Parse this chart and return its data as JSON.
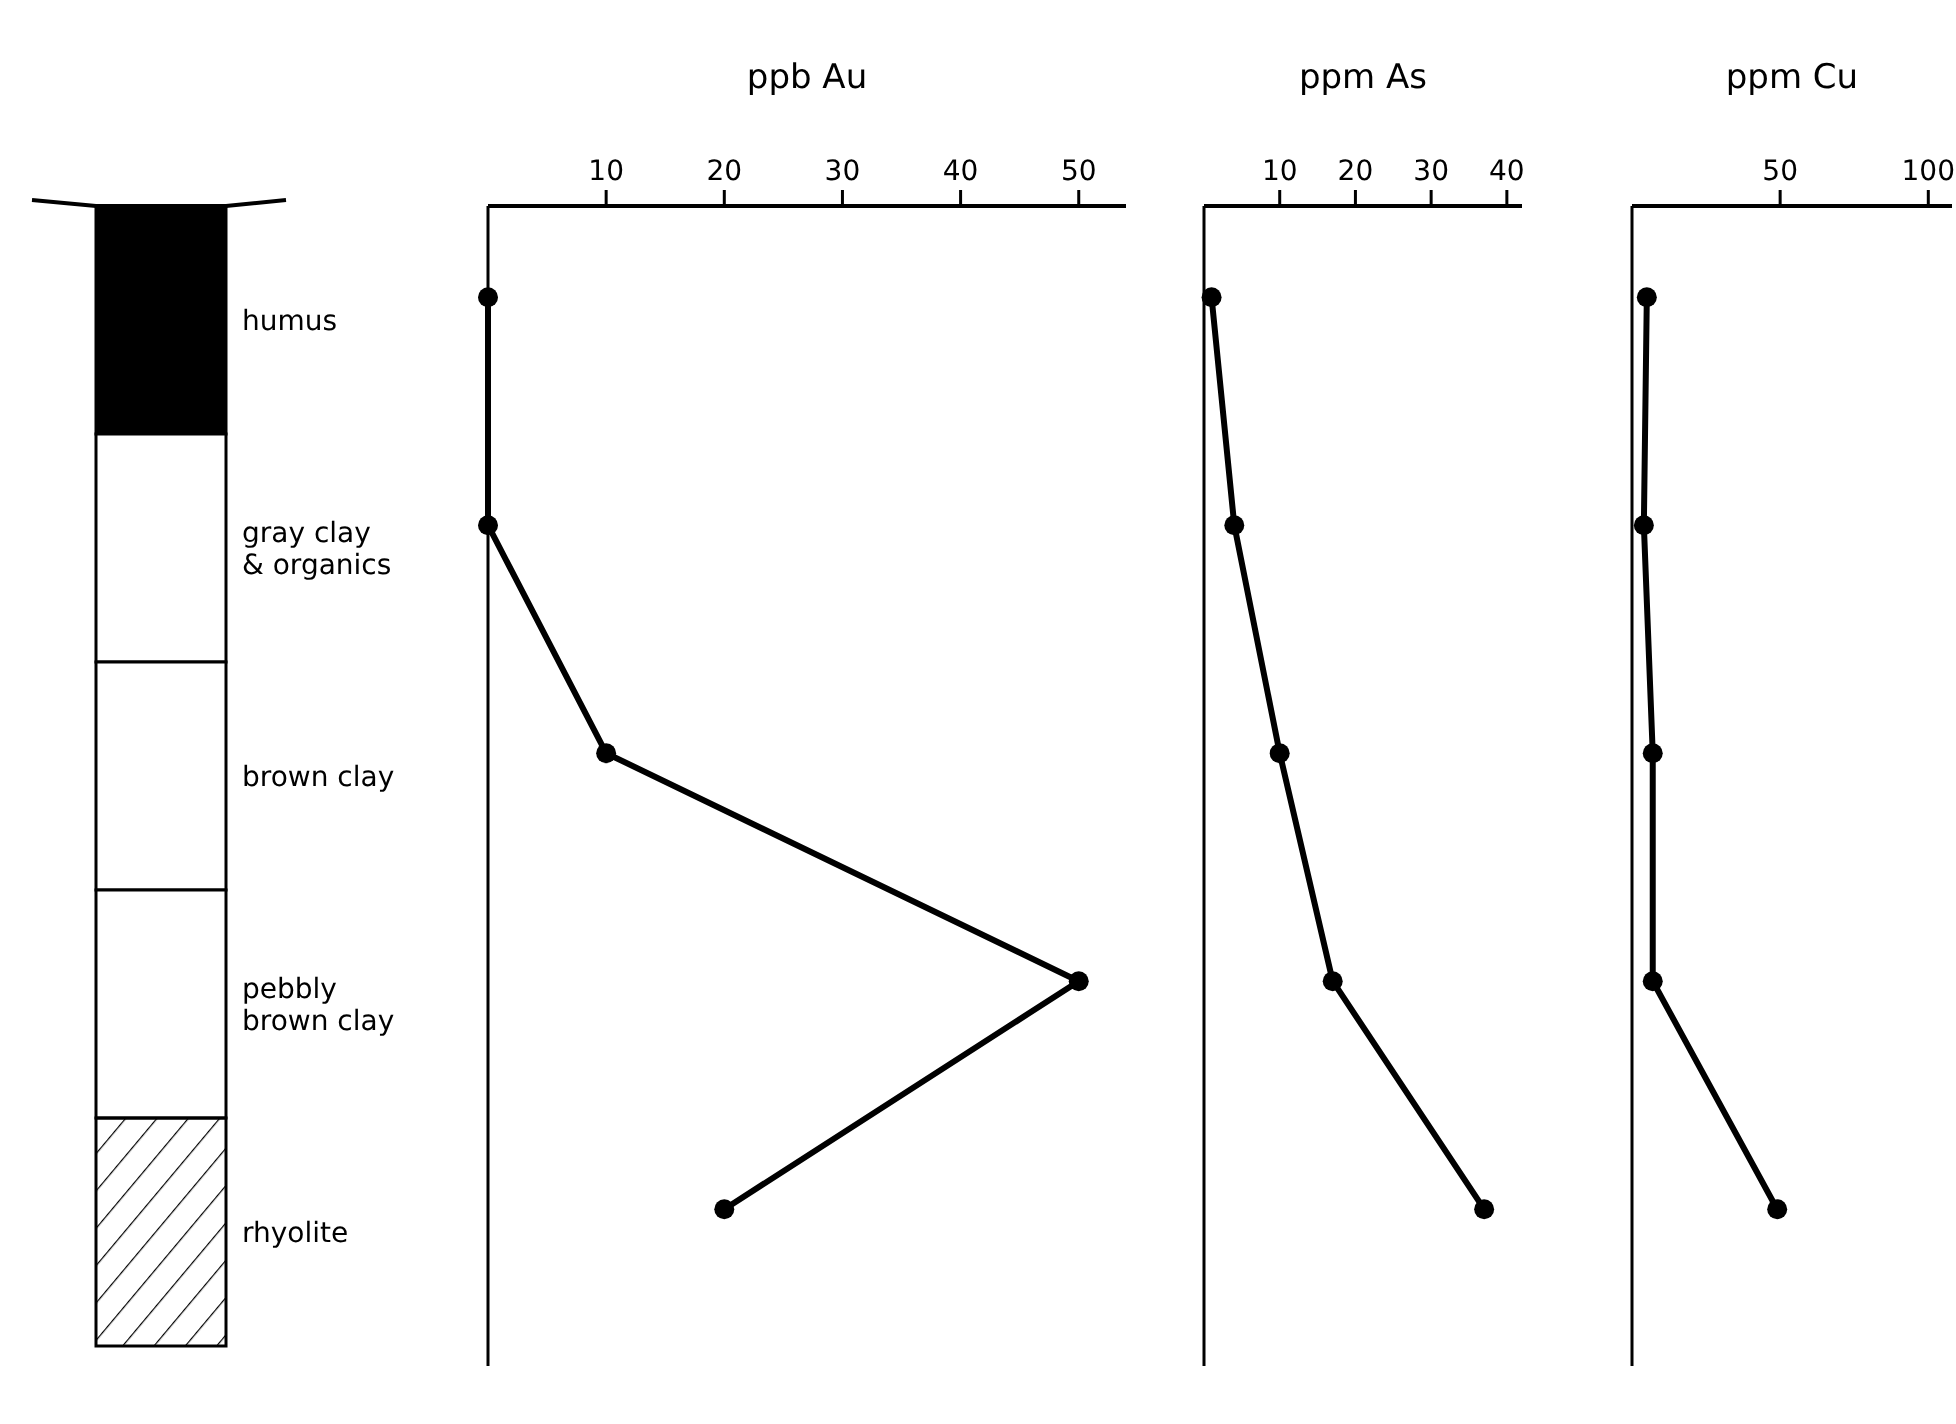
{
  "chart_data": [
    {
      "type": "line",
      "orientation": "horizontal",
      "title": "ppb Au",
      "categories": [
        "humus",
        "gray clay & organics",
        "brown clay",
        "pebbly brown clay",
        "rhyolite"
      ],
      "series": [
        {
          "color": "#000000",
          "values": [
            0,
            0,
            10,
            50,
            20
          ]
        }
      ],
      "xlim": [
        0,
        54
      ],
      "xticks": [
        10,
        20,
        30,
        40,
        50
      ],
      "marker": "circle",
      "line_style": "solid"
    },
    {
      "type": "line",
      "orientation": "horizontal",
      "title": "ppm As",
      "categories": [
        null,
        null,
        null,
        null,
        null
      ],
      "series": [
        {
          "color": "#000000",
          "values": [
            1,
            4,
            10,
            17,
            37
          ]
        }
      ],
      "xlim": [
        0,
        42
      ],
      "xticks": [
        10,
        20,
        30,
        40
      ],
      "marker": "circle",
      "line_style": "solid",
      "tick_labels": "x"
    },
    {
      "type": "line",
      "orientation": "horizontal",
      "title": "ppm Cu",
      "categories": [
        null,
        null,
        null,
        null,
        null
      ],
      "series": [
        {
          "color": "#000000",
          "values": [
            5,
            4,
            7,
            7,
            49
          ]
        }
      ],
      "xlim": [
        0,
        108
      ],
      "xticks": [
        50,
        100
      ],
      "marker": "circle",
      "line_style": "solid",
      "tick_labels": "x"
    }
  ]
}
